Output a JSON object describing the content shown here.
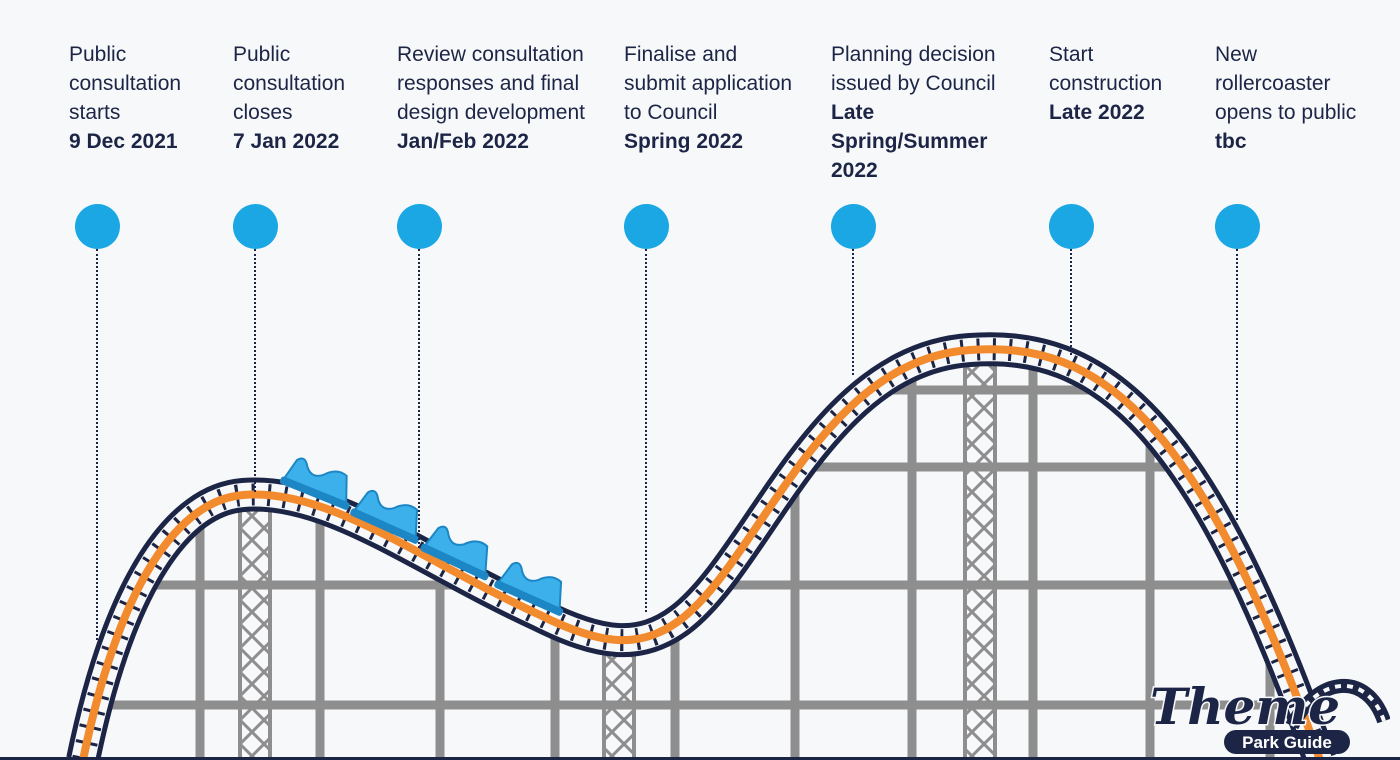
{
  "milestones": [
    {
      "lines": [
        "Public",
        "consultation",
        "starts"
      ],
      "date_lines": [
        "9 Dec 2021"
      ]
    },
    {
      "lines": [
        "Public",
        "consultation",
        "closes"
      ],
      "date_lines": [
        "7 Jan 2022"
      ]
    },
    {
      "lines": [
        "Review consultation",
        "responses and final",
        "design development"
      ],
      "date_lines": [
        "Jan/Feb 2022"
      ]
    },
    {
      "lines": [
        "Finalise and",
        "submit application",
        "to Council"
      ],
      "date_lines": [
        "Spring 2022"
      ]
    },
    {
      "lines": [
        "Planning decision",
        "issued by Council"
      ],
      "date_lines": [
        "Late",
        "Spring/Summer",
        "2022"
      ]
    },
    {
      "lines": [
        "Start",
        "construction"
      ],
      "date_lines": [
        "Late 2022"
      ]
    },
    {
      "lines": [
        "New",
        "rollercoaster",
        "opens to public"
      ],
      "date_lines": [
        "tbc"
      ]
    }
  ],
  "logo": {
    "word": "Theme",
    "tagline": "Park Guide"
  },
  "colors": {
    "accent_blue": "#1aa7e3",
    "track_navy": "#1c2545",
    "track_orange": "#f28a2e",
    "support_grey": "#8e8e8e",
    "car_blue": "#3bb0ea"
  }
}
